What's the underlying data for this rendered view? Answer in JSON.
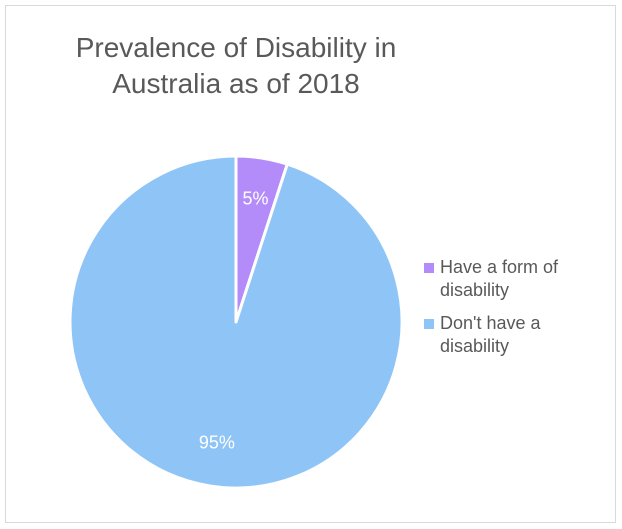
{
  "chart_data": {
    "type": "pie",
    "title": "Prevalence of Disability in\nAustralia as of 2018",
    "categories": [
      "Have a form of disability",
      "Don't have a disability"
    ],
    "values": [
      5,
      95
    ],
    "data_labels": [
      "5%",
      "95%"
    ],
    "colors": [
      "#b48cf9",
      "#8fc5f6"
    ],
    "legend_position": "right"
  }
}
